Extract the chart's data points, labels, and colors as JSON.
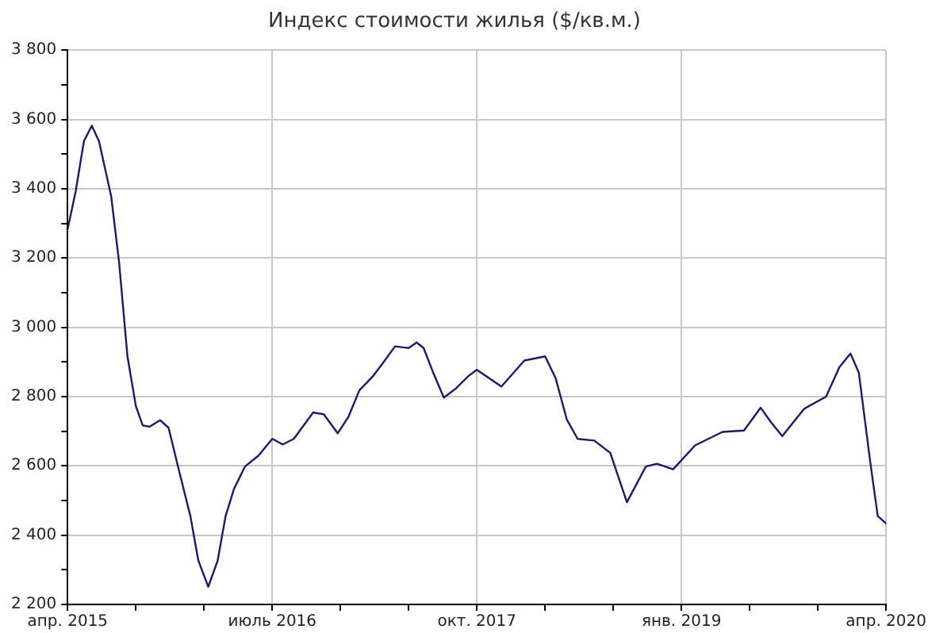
{
  "chart_data": {
    "type": "line",
    "title": "Индекс стоимости жилья ($/кв.м.)",
    "x": [
      "2015-04-01",
      "2015-04-19",
      "2015-05-07",
      "2015-05-25",
      "2015-06-10",
      "2015-07-07",
      "2015-07-25",
      "2015-08-13",
      "2015-09-01",
      "2015-09-16",
      "2015-10-01",
      "2015-10-25",
      "2015-11-13",
      "2015-12-07",
      "2016-01-01",
      "2016-01-19",
      "2016-02-10",
      "2016-03-01",
      "2016-03-19",
      "2016-04-07",
      "2016-05-01",
      "2016-06-01",
      "2016-07-01",
      "2016-07-25",
      "2016-08-19",
      "2016-10-01",
      "2016-10-25",
      "2016-11-25",
      "2016-12-19",
      "2017-01-13",
      "2017-02-13",
      "2017-03-07",
      "2017-04-01",
      "2017-05-01",
      "2017-05-19",
      "2017-06-04",
      "2017-06-25",
      "2017-07-19",
      "2017-08-16",
      "2017-09-13",
      "2017-10-01",
      "2017-11-25",
      "2018-01-16",
      "2018-03-01",
      "2018-03-25",
      "2018-04-19",
      "2018-05-13",
      "2018-06-19",
      "2018-07-25",
      "2018-09-01",
      "2018-10-13",
      "2018-11-07",
      "2018-12-13",
      "2019-02-01",
      "2019-04-01",
      "2019-05-19",
      "2019-06-25",
      "2019-07-19",
      "2019-08-13",
      "2019-10-01",
      "2019-11-19",
      "2019-12-19",
      "2020-01-13",
      "2020-02-01",
      "2020-02-25",
      "2020-03-13",
      "2020-04-01"
    ],
    "series": [
      {
        "color": "#1a1a6e",
        "values": [
          3283,
          3394,
          3537,
          3582,
          3537,
          3378,
          3187,
          2916,
          2773,
          2717,
          2713,
          2732,
          2710,
          2582,
          2455,
          2327,
          2251,
          2327,
          2455,
          2534,
          2598,
          2630,
          2678,
          2662,
          2678,
          2754,
          2749,
          2694,
          2741,
          2818,
          2861,
          2901,
          2945,
          2940,
          2956,
          2940,
          2869,
          2797,
          2824,
          2860,
          2877,
          2829,
          2904,
          2916,
          2853,
          2733,
          2678,
          2673,
          2638,
          2495,
          2598,
          2606,
          2590,
          2659,
          2698,
          2702,
          2768,
          2725,
          2686,
          2765,
          2800,
          2885,
          2924,
          2869,
          2614,
          2455,
          2434
        ]
      }
    ],
    "xlim": [
      "2015-04-01",
      "2020-04-01"
    ],
    "xticks": [
      {
        "value": "2015-04-01",
        "label": "апр. 2015"
      },
      {
        "value": "2015-09-01",
        "label": null
      },
      {
        "value": "2016-02-01",
        "label": null
      },
      {
        "value": "2016-07-01",
        "label": "июль 2016"
      },
      {
        "value": "2016-12-01",
        "label": null
      },
      {
        "value": "2017-05-01",
        "label": null
      },
      {
        "value": "2017-10-01",
        "label": "окт. 2017"
      },
      {
        "value": "2018-03-01",
        "label": null
      },
      {
        "value": "2018-08-01",
        "label": null
      },
      {
        "value": "2019-01-01",
        "label": "янв. 2019"
      },
      {
        "value": "2019-06-01",
        "label": null
      },
      {
        "value": "2019-11-01",
        "label": null
      },
      {
        "value": "2020-04-01",
        "label": "апр. 2020"
      }
    ],
    "ylim": [
      2200,
      3800
    ],
    "yticks": [
      {
        "value": 2200,
        "label": "2 200"
      },
      {
        "value": 2300,
        "label": null
      },
      {
        "value": 2400,
        "label": "2 400"
      },
      {
        "value": 2500,
        "label": null
      },
      {
        "value": 2600,
        "label": "2 600"
      },
      {
        "value": 2700,
        "label": null
      },
      {
        "value": 2800,
        "label": "2 800"
      },
      {
        "value": 2900,
        "label": null
      },
      {
        "value": 3000,
        "label": "3 000"
      },
      {
        "value": 3100,
        "label": null
      },
      {
        "value": 3200,
        "label": "3 200"
      },
      {
        "value": 3300,
        "label": null
      },
      {
        "value": 3400,
        "label": "3 400"
      },
      {
        "value": 3500,
        "label": null
      },
      {
        "value": 3600,
        "label": "3 600"
      },
      {
        "value": 3700,
        "label": null
      },
      {
        "value": 3800,
        "label": "3 800"
      }
    ],
    "grid": true,
    "marker": "none",
    "line_style": "solid",
    "legend": false
  }
}
